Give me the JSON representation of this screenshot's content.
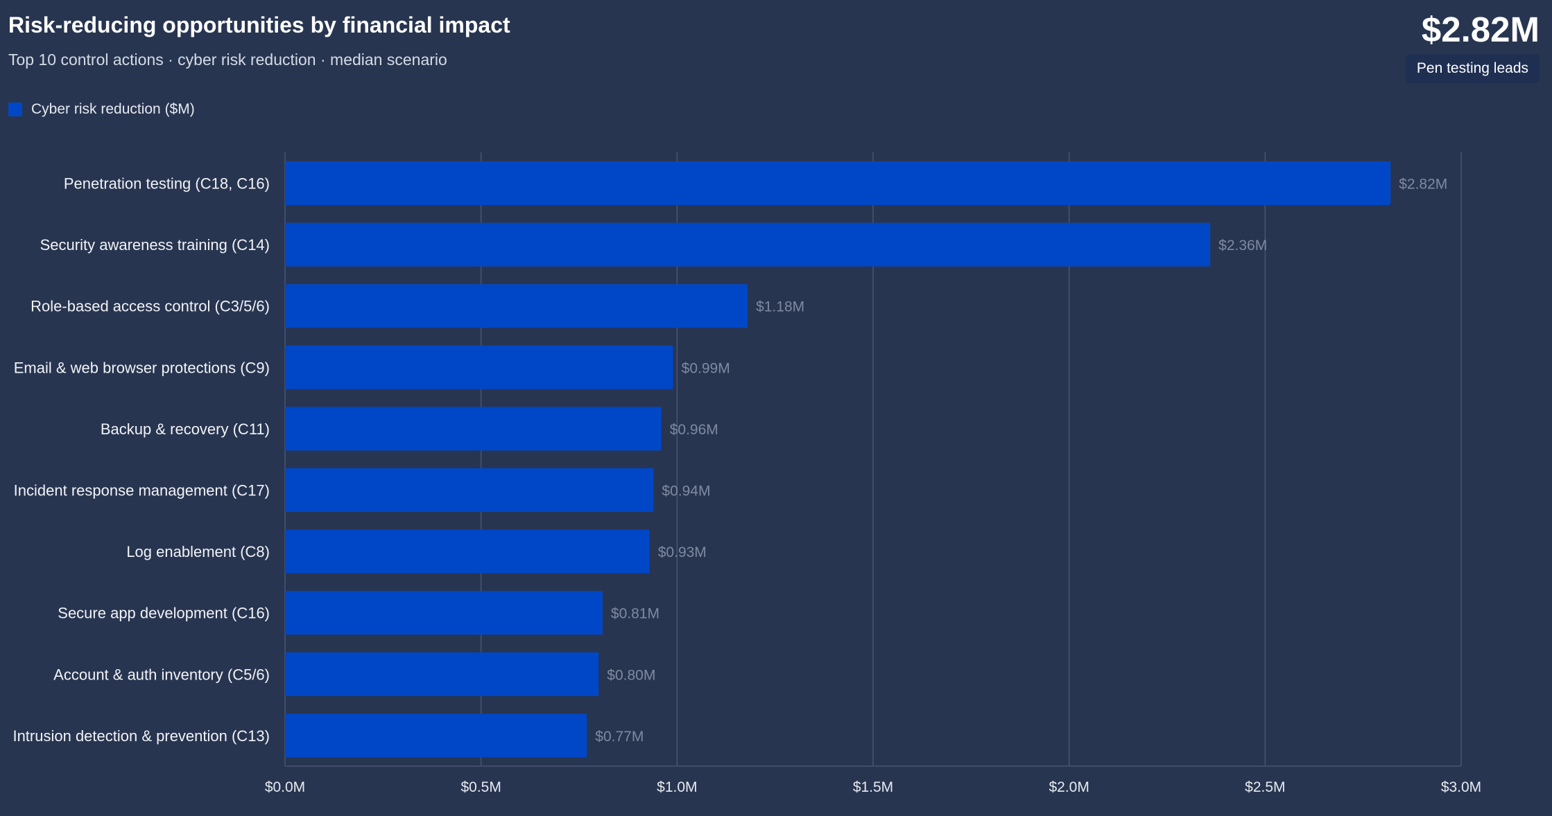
{
  "header": {
    "title": "Risk-reducing opportunities by financial impact",
    "subtitle": "Top 10 control actions · cyber risk reduction · median scenario"
  },
  "kpi": {
    "value": "$2.82M",
    "badge": "Pen testing leads"
  },
  "colors": {
    "background": "#283550",
    "bar": "#0047c7",
    "grid": "#485572",
    "value_label": "#7f8aa1"
  },
  "chart_data": {
    "type": "bar",
    "orientation": "horizontal",
    "categories": [
      "Penetration testing (C18, C16)",
      "Security awareness training (C14)",
      "Role-based access control (C3/5/6)",
      "Email & web browser protections (C9)",
      "Backup & recovery (C11)",
      "Incident response management (C17)",
      "Log enablement (C8)",
      "Secure app development (C16)",
      "Account & auth inventory (C5/6)",
      "Intrusion detection & prevention (C13)"
    ],
    "series": [
      {
        "name": "Cyber risk reduction ($M)",
        "values": [
          2.82,
          2.36,
          1.18,
          0.99,
          0.96,
          0.94,
          0.93,
          0.81,
          0.8,
          0.77
        ]
      }
    ],
    "value_labels": [
      "$2.82M",
      "$2.36M",
      "$1.18M",
      "$0.99M",
      "$0.96M",
      "$0.94M",
      "$0.93M",
      "$0.81M",
      "$0.80M",
      "$0.77M"
    ],
    "x_ticks": [
      0,
      0.5,
      1.0,
      1.5,
      2.0,
      2.5,
      3.0
    ],
    "x_tick_labels": [
      "$0.0M",
      "$0.5M",
      "$1.0M",
      "$1.5M",
      "$2.0M",
      "$2.5M",
      "$3.0M"
    ],
    "xlim": [
      0,
      3.0
    ],
    "grid": true,
    "legend_position": "top-left"
  }
}
